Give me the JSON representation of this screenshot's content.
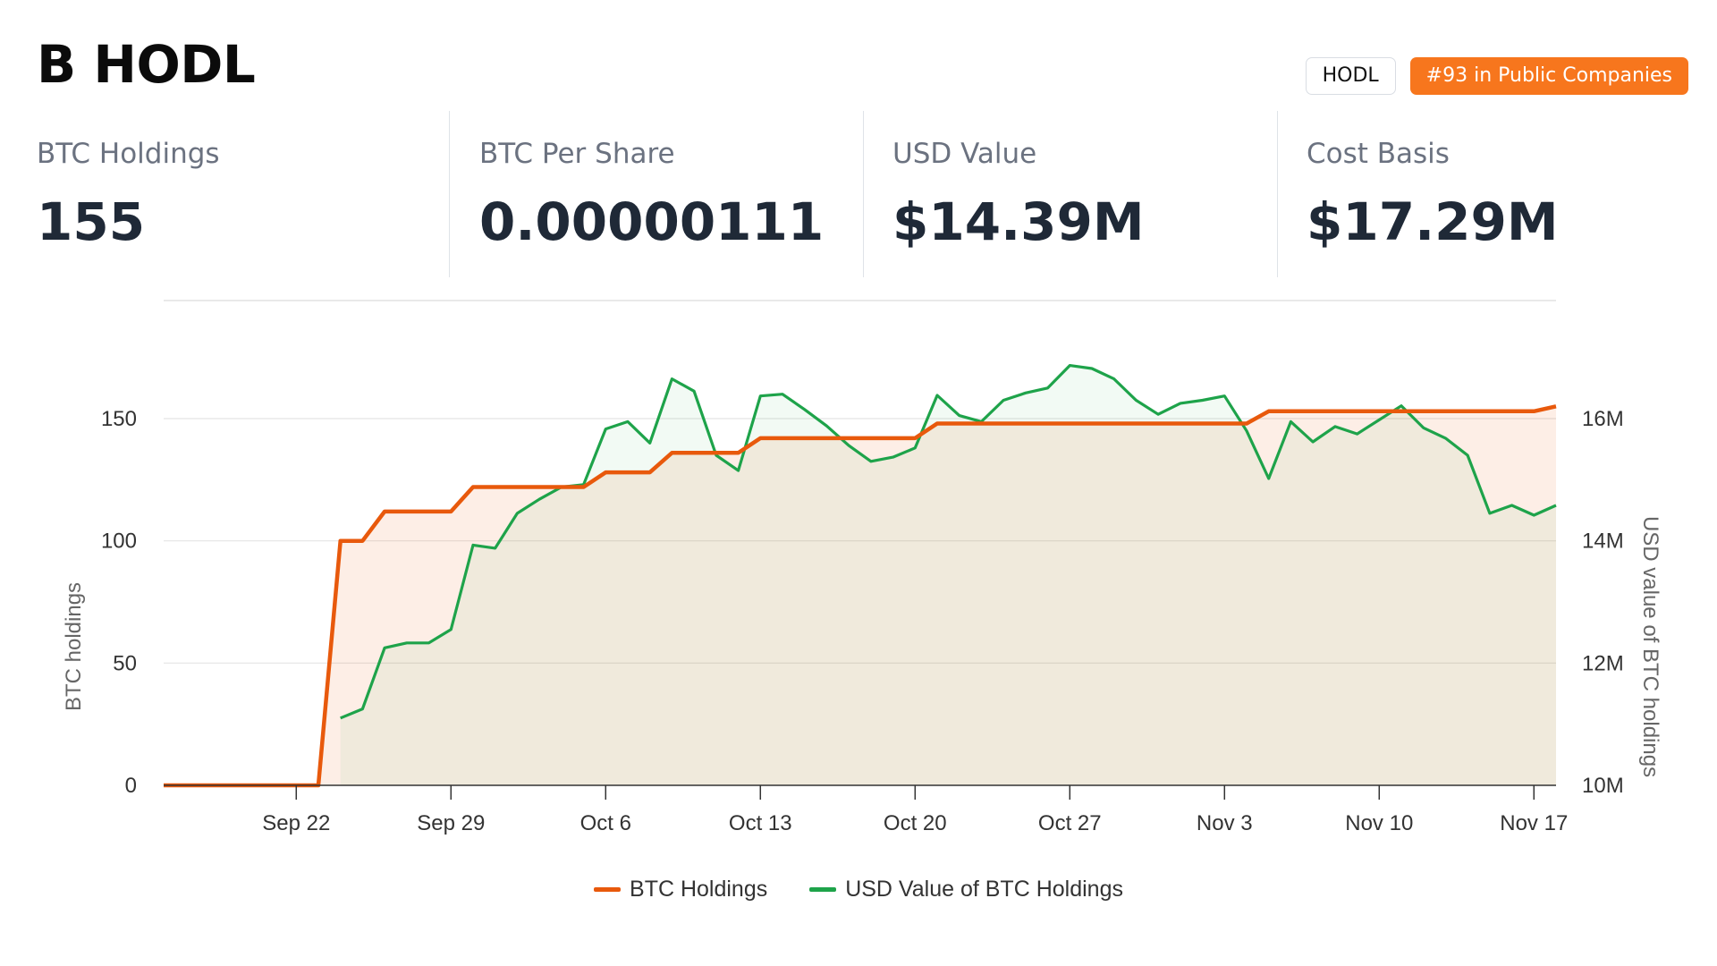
{
  "company": {
    "title": "B HODL"
  },
  "badges": {
    "ticker": "HODL",
    "rank": "#93 in Public Companies"
  },
  "stats": [
    {
      "label": "BTC Holdings",
      "value": "155"
    },
    {
      "label": "BTC Per Share",
      "value": "0.00000111"
    },
    {
      "label": "USD Value",
      "value": "$14.39M"
    },
    {
      "label": "Cost Basis",
      "value": "$17.29M"
    }
  ],
  "colors": {
    "accent": "#f7761d",
    "btc_line": "#e8590c",
    "usd_line": "#1ea34a",
    "title": "#0b0b0b",
    "stat_label": "#6b7280",
    "stat_value": "#1f2937"
  },
  "chart_data": {
    "type": "line",
    "x_start": "2024-09-16",
    "x_end": "2024-11-18",
    "xtick_labels": [
      "Sep 22",
      "Sep 29",
      "Oct 6",
      "Oct 13",
      "Oct 20",
      "Oct 27",
      "Nov 3",
      "Nov 10",
      "Nov 17"
    ],
    "xtick_dates": [
      "2024-09-22",
      "2024-09-29",
      "2024-10-06",
      "2024-10-13",
      "2024-10-20",
      "2024-10-27",
      "2024-11-03",
      "2024-11-10",
      "2024-11-17"
    ],
    "y_left": {
      "label": "BTC holdings",
      "ylim": [
        0,
        150
      ],
      "ticks": [
        0,
        50,
        100,
        150
      ]
    },
    "y_right": {
      "label": "USD value of BTC holdings",
      "ylim": [
        10000000,
        16000000
      ],
      "ticks": [
        10000000,
        12000000,
        14000000,
        16000000
      ],
      "tick_labels": [
        "10M",
        "12M",
        "14M",
        "16M"
      ]
    },
    "grid": true,
    "legend_position": "bottom-center",
    "series": [
      {
        "name": "BTC Holdings",
        "axis": "left",
        "color": "#e8590c",
        "points": [
          [
            "2024-09-16",
            0
          ],
          [
            "2024-09-23",
            0
          ],
          [
            "2024-09-24",
            100
          ],
          [
            "2024-09-25",
            100
          ],
          [
            "2024-09-26",
            112
          ],
          [
            "2024-09-29",
            112
          ],
          [
            "2024-09-30",
            122
          ],
          [
            "2024-10-05",
            122
          ],
          [
            "2024-10-06",
            128
          ],
          [
            "2024-10-08",
            128
          ],
          [
            "2024-10-09",
            136
          ],
          [
            "2024-10-12",
            136
          ],
          [
            "2024-10-13",
            142
          ],
          [
            "2024-10-20",
            142
          ],
          [
            "2024-10-21",
            148
          ],
          [
            "2024-11-04",
            148
          ],
          [
            "2024-11-05",
            153
          ],
          [
            "2024-11-17",
            153
          ],
          [
            "2024-11-18",
            155
          ]
        ]
      },
      {
        "name": "USD Value of BTC Holdings",
        "axis": "right",
        "color": "#1ea34a",
        "points": [
          [
            "2024-09-24",
            11100000
          ],
          [
            "2024-09-25",
            11250000
          ],
          [
            "2024-09-26",
            12250000
          ],
          [
            "2024-09-27",
            12330000
          ],
          [
            "2024-09-28",
            12330000
          ],
          [
            "2024-09-29",
            12550000
          ],
          [
            "2024-09-30",
            13930000
          ],
          [
            "2024-10-01",
            13880000
          ],
          [
            "2024-10-02",
            14450000
          ],
          [
            "2024-10-03",
            14680000
          ],
          [
            "2024-10-04",
            14880000
          ],
          [
            "2024-10-05",
            14920000
          ],
          [
            "2024-10-06",
            15830000
          ],
          [
            "2024-10-07",
            15950000
          ],
          [
            "2024-10-08",
            15600000
          ],
          [
            "2024-10-09",
            16650000
          ],
          [
            "2024-10-10",
            16450000
          ],
          [
            "2024-10-11",
            15400000
          ],
          [
            "2024-10-12",
            15150000
          ],
          [
            "2024-10-13",
            16370000
          ],
          [
            "2024-10-14",
            16400000
          ],
          [
            "2024-10-15",
            16150000
          ],
          [
            "2024-10-16",
            15880000
          ],
          [
            "2024-10-17",
            15560000
          ],
          [
            "2024-10-18",
            15300000
          ],
          [
            "2024-10-19",
            15370000
          ],
          [
            "2024-10-20",
            15520000
          ],
          [
            "2024-10-21",
            16380000
          ],
          [
            "2024-10-22",
            16050000
          ],
          [
            "2024-10-23",
            15950000
          ],
          [
            "2024-10-24",
            16300000
          ],
          [
            "2024-10-25",
            16420000
          ],
          [
            "2024-10-26",
            16500000
          ],
          [
            "2024-10-27",
            16870000
          ],
          [
            "2024-10-28",
            16820000
          ],
          [
            "2024-10-29",
            16650000
          ],
          [
            "2024-10-30",
            16300000
          ],
          [
            "2024-10-31",
            16070000
          ],
          [
            "2024-11-01",
            16250000
          ],
          [
            "2024-11-02",
            16300000
          ],
          [
            "2024-11-03",
            16370000
          ],
          [
            "2024-11-04",
            15800000
          ],
          [
            "2024-11-05",
            15020000
          ],
          [
            "2024-11-06",
            15950000
          ],
          [
            "2024-11-07",
            15620000
          ],
          [
            "2024-11-08",
            15870000
          ],
          [
            "2024-11-09",
            15750000
          ],
          [
            "2024-11-10",
            15980000
          ],
          [
            "2024-11-11",
            16210000
          ],
          [
            "2024-11-12",
            15850000
          ],
          [
            "2024-11-13",
            15680000
          ],
          [
            "2024-11-14",
            15400000
          ],
          [
            "2024-11-15",
            14450000
          ],
          [
            "2024-11-16",
            14580000
          ],
          [
            "2024-11-17",
            14420000
          ],
          [
            "2024-11-18",
            14580000
          ]
        ]
      }
    ]
  }
}
